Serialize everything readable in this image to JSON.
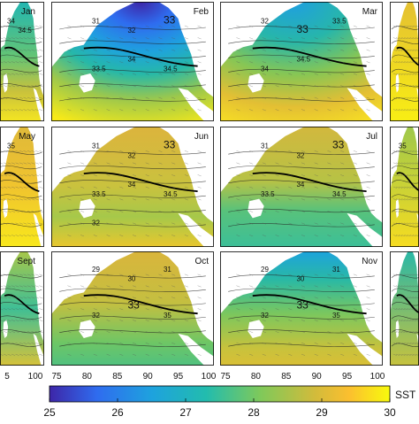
{
  "panels": [
    {
      "month": "Jan",
      "contour_labels": [
        "34",
        "34.5"
      ]
    },
    {
      "month": "Feb",
      "contour_labels": [
        "31",
        "32",
        "33",
        "33.5",
        "34",
        "34.5"
      ]
    },
    {
      "month": "Mar",
      "contour_labels": [
        "32",
        "33",
        "33.5",
        "34",
        "34.5"
      ]
    },
    {
      "month": "",
      "contour_labels": []
    },
    {
      "month": "May",
      "contour_labels": [
        "35"
      ]
    },
    {
      "month": "Jun",
      "contour_labels": [
        "31",
        "32",
        "33",
        "33.5",
        "34",
        "34.5",
        "32"
      ]
    },
    {
      "month": "Jul",
      "contour_labels": [
        "31",
        "32",
        "33",
        "33.5",
        "34",
        "34.5"
      ]
    },
    {
      "month": "",
      "contour_labels": [
        "35"
      ]
    },
    {
      "month": "Sept",
      "contour_labels": []
    },
    {
      "month": "Oct",
      "contour_labels": [
        "29",
        "30",
        "31",
        "32",
        "33",
        "35"
      ]
    },
    {
      "month": "Nov",
      "contour_labels": [
        "29",
        "30",
        "31",
        "32",
        "33",
        "35"
      ]
    },
    {
      "month": "",
      "contour_labels": []
    }
  ],
  "x_ticks": {
    "col0": [
      "5",
      "100"
    ],
    "col1": [
      "75",
      "80",
      "85",
      "90",
      "95",
      "100"
    ],
    "col2": [
      "75",
      "80",
      "85",
      "90",
      "95",
      "100"
    ]
  },
  "colorbar": {
    "label": "SST",
    "ticks": [
      "25",
      "26",
      "27",
      "28",
      "29",
      "30"
    ],
    "range": [
      25,
      30
    ],
    "colors": [
      "#3d26a8",
      "#2f6cef",
      "#1ea2de",
      "#22bcae",
      "#7fc95a",
      "#d2bb3b",
      "#fbbf2f",
      "#f8fa0d"
    ]
  },
  "colors": {
    "land": "#ffffff",
    "contour": "#222222",
    "thick_contour": "#000000"
  }
}
